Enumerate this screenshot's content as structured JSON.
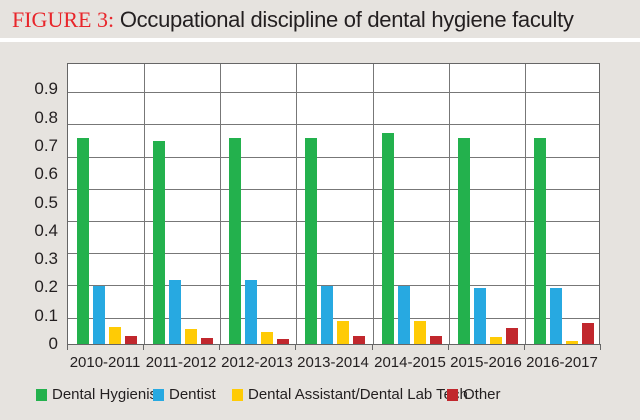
{
  "figure": {
    "label": "FIGURE 3:",
    "title": "Occupational discipline of dental hygiene faculty"
  },
  "colors": {
    "dental_hygienist": "#23b14d",
    "dentist": "#27a9e1",
    "dental_assistant": "#ffcb05",
    "other": "#c1272d",
    "title_accent": "#e8262b"
  },
  "yaxis": {
    "ticks": [
      "0",
      "0.1",
      "0.2",
      "0.3",
      "0.4",
      "0.5",
      "0.6",
      "0.7",
      "0.8",
      "0.9"
    ]
  },
  "legend": [
    {
      "label": "Dental Hygienist",
      "color": "#23b14d"
    },
    {
      "label": "Dentist",
      "color": "#27a9e1"
    },
    {
      "label": "Dental Assistant/Dental Lab Tech",
      "color": "#ffcb05"
    },
    {
      "label": "Other",
      "color": "#c1272d"
    }
  ],
  "chart_data": {
    "type": "bar",
    "title": "FIGURE 3: Occupational discipline of dental hygiene faculty",
    "xlabel": "",
    "ylabel": "",
    "ylim": [
      0,
      0.9
    ],
    "grid": true,
    "legend_position": "bottom",
    "categories": [
      "2010-2011",
      "2011-2012",
      "2012-2013",
      "2013-2014",
      "2014-2015",
      "2015-2016",
      "2016-2017"
    ],
    "series": [
      {
        "name": "Dental Hygienist",
        "color": "#23b14d",
        "values": [
          0.73,
          0.72,
          0.73,
          0.73,
          0.75,
          0.73,
          0.73
        ]
      },
      {
        "name": "Dentist",
        "color": "#27a9e1",
        "values": [
          0.21,
          0.23,
          0.23,
          0.21,
          0.21,
          0.2,
          0.2
        ]
      },
      {
        "name": "Dental Assistant/Dental Lab Tech",
        "color": "#ffcb05",
        "values": [
          0.064,
          0.057,
          0.046,
          0.085,
          0.085,
          0.03,
          0.015
        ]
      },
      {
        "name": "Other",
        "color": "#c1272d",
        "values": [
          0.032,
          0.025,
          0.02,
          0.032,
          0.032,
          0.06,
          0.077
        ]
      }
    ]
  }
}
